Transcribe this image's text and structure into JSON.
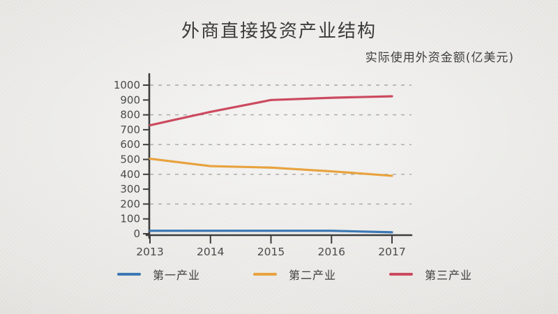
{
  "header": {
    "title": "外商直接投资产业结构",
    "subtitle": "实际使用外资金额(亿美元)"
  },
  "chart_data": {
    "type": "line",
    "title": "外商直接投资产业结构",
    "subtitle": "实际使用外资金额(亿美元)",
    "x": [
      "2013",
      "2014",
      "2015",
      "2016",
      "2017"
    ],
    "series": [
      {
        "name": "第一产业",
        "color": "#3c78b4",
        "values": [
          20,
          20,
          20,
          20,
          10
        ]
      },
      {
        "name": "第二产业",
        "color": "#e8a23e",
        "values": [
          505,
          455,
          445,
          420,
          390
        ]
      },
      {
        "name": "第三产业",
        "color": "#cc4a5f",
        "values": [
          730,
          820,
          900,
          915,
          925
        ]
      }
    ],
    "ylim": [
      0,
      1000
    ],
    "yticks": [
      0,
      100,
      200,
      300,
      400,
      500,
      600,
      700,
      800,
      900,
      1000
    ],
    "gridlines": [
      200,
      400,
      600,
      800,
      1000
    ],
    "grid_style": "dashed",
    "legend_position": "bottom",
    "axis_color": "#3d3d3d",
    "grid_color": "#a8a6a2",
    "label_color": "#4a4a4a"
  }
}
